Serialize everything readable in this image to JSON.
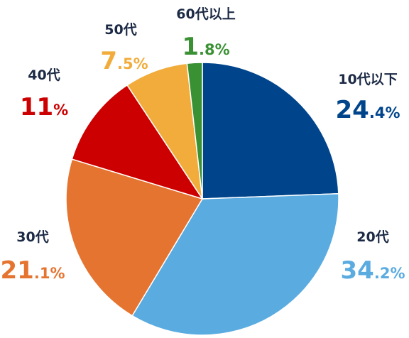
{
  "chart_data": {
    "type": "pie",
    "title": "",
    "unit": "%",
    "slices": [
      {
        "label": "10代以下",
        "value": 24.4,
        "int": "24",
        "dec": ".4",
        "unit": "%",
        "color": "#00458c"
      },
      {
        "label": "20代",
        "value": 34.2,
        "int": "34",
        "dec": ".2",
        "unit": "%",
        "color": "#5aabe0"
      },
      {
        "label": "30代",
        "value": 21.1,
        "int": "21",
        "dec": ".1",
        "unit": "%",
        "color": "#e57430"
      },
      {
        "label": "40代",
        "value": 11,
        "int": "11",
        "dec": "",
        "unit": "%",
        "color": "#cc0000"
      },
      {
        "label": "50代",
        "value": 7.5,
        "int": "7",
        "dec": ".5",
        "unit": "%",
        "color": "#f1ac3b"
      },
      {
        "label": "60代以上",
        "value": 1.8,
        "int": "1",
        "dec": ".8",
        "unit": "%",
        "color": "#3a9134"
      }
    ],
    "start_angle": "12 o'clock",
    "direction": "clockwise",
    "legend": "none"
  }
}
